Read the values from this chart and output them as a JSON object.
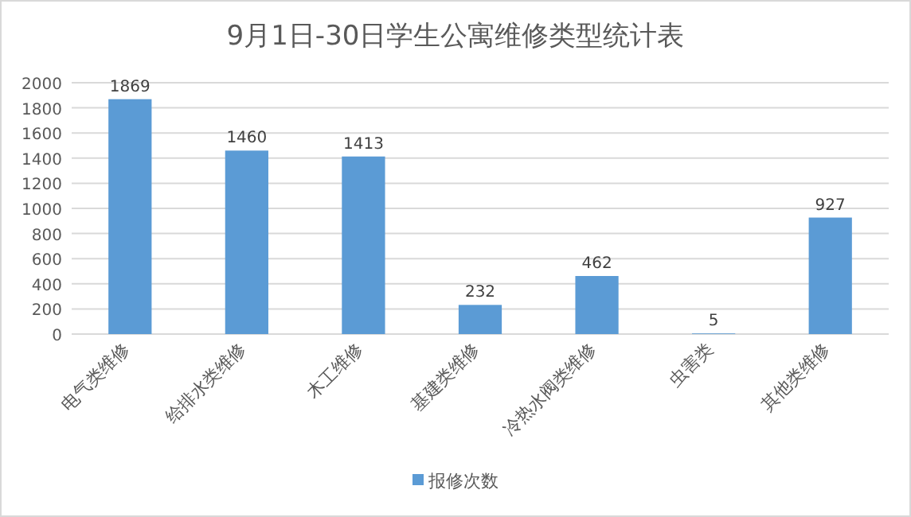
{
  "chart_data": {
    "type": "bar",
    "title": "9月1日-30日学生公寓维修类型统计表",
    "categories": [
      "电气类维修",
      "给排水类维修",
      "木工维修",
      "基建类维修",
      "冷热水阀类维修",
      "虫害类",
      "其他类维修"
    ],
    "series": [
      {
        "name": "报修次数",
        "color": "#5b9bd5",
        "values": [
          1869,
          1460,
          1413,
          232,
          462,
          5,
          927
        ]
      }
    ],
    "ylim": [
      0,
      2000
    ],
    "yticks": [
      0,
      200,
      400,
      600,
      800,
      1000,
      1200,
      1400,
      1600,
      1800,
      2000
    ],
    "grid": "y",
    "legend": "bottom",
    "data_labels": true
  }
}
